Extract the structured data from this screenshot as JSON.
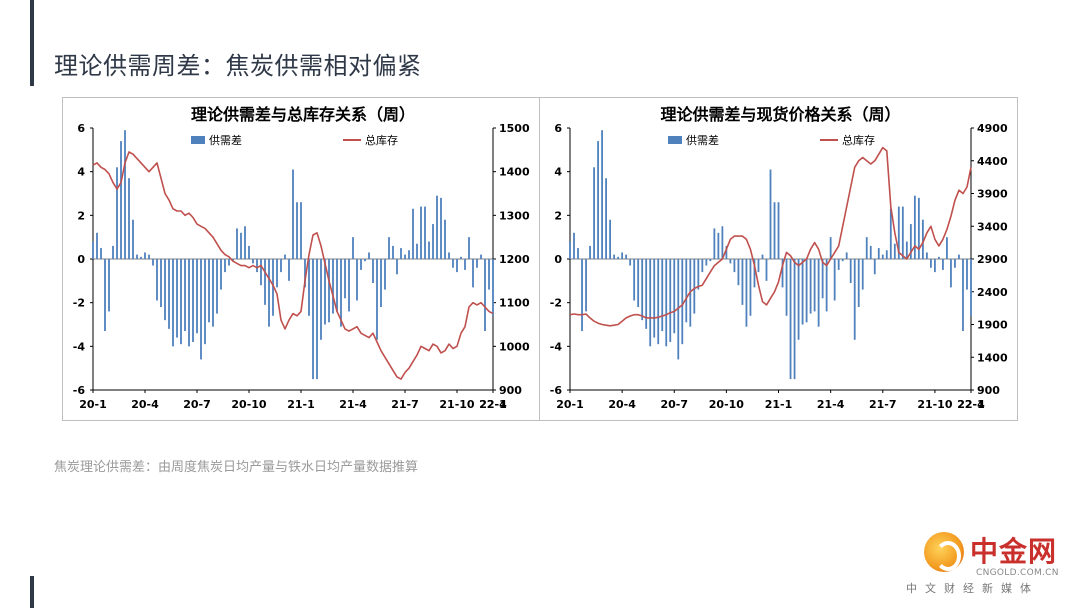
{
  "slide": {
    "title": "理论供需周差：焦炭供需相对偏紧",
    "footnote": "焦炭理论供需差：由周度焦炭日均产量与铁水日均产量数据推算"
  },
  "logo": {
    "name": "中金网",
    "site": "CNGOLD.COM.CN",
    "media": "中文财经新媒体"
  },
  "colors": {
    "bar": "#4f81bd",
    "line": "#c0504d",
    "title": "#2f3847",
    "axis": "#000000"
  },
  "chart_data": [
    {
      "type": "bar+line",
      "title": "理论供需差与总库存关系（周）",
      "legend": [
        "供需差",
        "总库存"
      ],
      "legend_position": "top",
      "x_ticks": [
        "20-1",
        "20-4",
        "20-7",
        "20-10",
        "21-1",
        "21-4",
        "21-7",
        "21-10",
        "22-1",
        "22-4"
      ],
      "weeks_per_tick": 13,
      "y_left": {
        "min": -6,
        "max": 6,
        "ticks": [
          -6,
          -4,
          -2,
          0,
          2,
          4,
          6
        ]
      },
      "y_right": {
        "min": 900,
        "max": 1500,
        "ticks": [
          900,
          1000,
          1100,
          1200,
          1300,
          1400,
          1500
        ]
      },
      "grid": false,
      "bars": {
        "name": "供需差",
        "values": [
          0.8,
          1.2,
          0.5,
          -3.3,
          -2.4,
          0.6,
          4.2,
          5.4,
          5.9,
          3.7,
          1.8,
          0.2,
          0.1,
          0.3,
          0.2,
          -0.3,
          -1.9,
          -2.2,
          -2.8,
          -3.2,
          -4.0,
          -3.6,
          -3.9,
          -3.3,
          -4.0,
          -3.8,
          -3.4,
          -4.6,
          -3.9,
          -2.9,
          -3.1,
          -2.5,
          -1.4,
          -0.6,
          -0.3,
          -0.1,
          1.4,
          1.2,
          1.5,
          0.6,
          -0.2,
          -0.6,
          -1.2,
          -2.1,
          -3.1,
          -2.6,
          -1.3,
          -0.6,
          0.2,
          -1.0,
          4.1,
          2.6,
          2.6,
          -1.3,
          -2.6,
          -5.5,
          -5.5,
          -3.7,
          -3.0,
          -2.9,
          -2.5,
          -2.4,
          -3.1,
          -1.8,
          -2.4,
          1.0,
          -1.9,
          -0.5,
          -0.1,
          0.3,
          -1.1,
          -3.7,
          -2.2,
          -1.4,
          1.0,
          0.6,
          -0.7,
          0.5,
          0.2,
          0.4,
          2.3,
          0.7,
          2.4,
          2.4,
          0.8,
          1.6,
          2.9,
          2.8,
          1.8,
          0.3,
          -0.4,
          -0.6,
          0.1,
          -0.5,
          1.0,
          -1.3,
          -0.4,
          0.2,
          -3.3,
          -1.4,
          -2.6
        ]
      },
      "line": {
        "name": "总库存",
        "values": [
          1415,
          1420,
          1410,
          1405,
          1395,
          1375,
          1360,
          1375,
          1420,
          1445,
          1440,
          1430,
          1420,
          1410,
          1400,
          1410,
          1420,
          1385,
          1350,
          1335,
          1315,
          1310,
          1310,
          1300,
          1305,
          1295,
          1280,
          1275,
          1270,
          1260,
          1250,
          1235,
          1220,
          1210,
          1205,
          1195,
          1190,
          1185,
          1185,
          1180,
          1185,
          1180,
          1185,
          1170,
          1155,
          1140,
          1120,
          1060,
          1040,
          1060,
          1075,
          1070,
          1080,
          1150,
          1210,
          1255,
          1260,
          1230,
          1190,
          1150,
          1115,
          1080,
          1060,
          1040,
          1035,
          1040,
          1045,
          1030,
          1025,
          1020,
          1030,
          1010,
          990,
          975,
          960,
          945,
          930,
          925,
          940,
          950,
          965,
          980,
          1000,
          995,
          990,
          1005,
          1000,
          985,
          990,
          1005,
          995,
          1000,
          1030,
          1045,
          1090,
          1100,
          1095,
          1100,
          1090,
          1080,
          1075
        ]
      }
    },
    {
      "type": "bar+line",
      "title": "理论供需差与现货价格关系（周）",
      "legend": [
        "供需差",
        "总库存"
      ],
      "legend_position": "top",
      "x_ticks": [
        "20-1",
        "20-4",
        "20-7",
        "20-10",
        "21-1",
        "21-4",
        "21-7",
        "21-10",
        "22-1",
        "22-4"
      ],
      "weeks_per_tick": 13,
      "y_left": {
        "min": -6,
        "max": 6,
        "ticks": [
          -6,
          -4,
          -2,
          0,
          2,
          4,
          6
        ]
      },
      "y_right": {
        "min": 900,
        "max": 4900,
        "ticks": [
          900,
          1400,
          1900,
          2400,
          2900,
          3400,
          3900,
          4400,
          4900
        ]
      },
      "grid": false,
      "bars": {
        "name": "供需差",
        "values": [
          0.8,
          1.2,
          0.5,
          -3.3,
          -2.4,
          0.6,
          4.2,
          5.4,
          5.9,
          3.7,
          1.8,
          0.2,
          0.1,
          0.3,
          0.2,
          -0.3,
          -1.9,
          -2.2,
          -2.8,
          -3.2,
          -4.0,
          -3.6,
          -3.9,
          -3.3,
          -4.0,
          -3.8,
          -3.4,
          -4.6,
          -3.9,
          -2.9,
          -3.1,
          -2.5,
          -1.4,
          -0.6,
          -0.3,
          -0.1,
          1.4,
          1.2,
          1.5,
          0.6,
          -0.2,
          -0.6,
          -1.2,
          -2.1,
          -3.1,
          -2.6,
          -1.3,
          -0.6,
          0.2,
          -1.0,
          4.1,
          2.6,
          2.6,
          -1.3,
          -2.6,
          -5.5,
          -5.5,
          -3.7,
          -3.0,
          -2.9,
          -2.5,
          -2.4,
          -3.1,
          -1.8,
          -2.4,
          1.0,
          -1.9,
          -0.5,
          -0.1,
          0.3,
          -1.1,
          -3.7,
          -2.2,
          -1.4,
          1.0,
          0.6,
          -0.7,
          0.5,
          0.2,
          0.4,
          2.3,
          0.7,
          2.4,
          2.4,
          0.8,
          1.6,
          2.9,
          2.8,
          1.8,
          0.3,
          -0.4,
          -0.6,
          0.1,
          -0.5,
          1.0,
          -1.3,
          -0.4,
          0.2,
          -3.3,
          -1.4,
          -2.6
        ]
      },
      "line": {
        "name": "总库存",
        "values": [
          2050,
          2060,
          2050,
          2050,
          2060,
          2000,
          1950,
          1920,
          1900,
          1890,
          1880,
          1890,
          1900,
          1950,
          2000,
          2030,
          2050,
          2050,
          2030,
          2000,
          2000,
          2000,
          2010,
          2030,
          2050,
          2080,
          2100,
          2150,
          2200,
          2300,
          2400,
          2450,
          2480,
          2500,
          2600,
          2700,
          2800,
          2850,
          2900,
          3050,
          3200,
          3250,
          3250,
          3250,
          3200,
          3050,
          2800,
          2500,
          2250,
          2200,
          2300,
          2400,
          2550,
          2800,
          3000,
          2950,
          2850,
          2800,
          2850,
          2900,
          3050,
          3150,
          3050,
          2850,
          2800,
          2900,
          3000,
          3100,
          3400,
          3700,
          4000,
          4300,
          4400,
          4450,
          4400,
          4350,
          4400,
          4500,
          4600,
          4550,
          3700,
          3300,
          3000,
          2950,
          2900,
          3000,
          3100,
          3050,
          3150,
          3300,
          3400,
          3200,
          3100,
          3200,
          3350,
          3550,
          3800,
          3950,
          3900,
          4000,
          4300
        ]
      }
    }
  ]
}
